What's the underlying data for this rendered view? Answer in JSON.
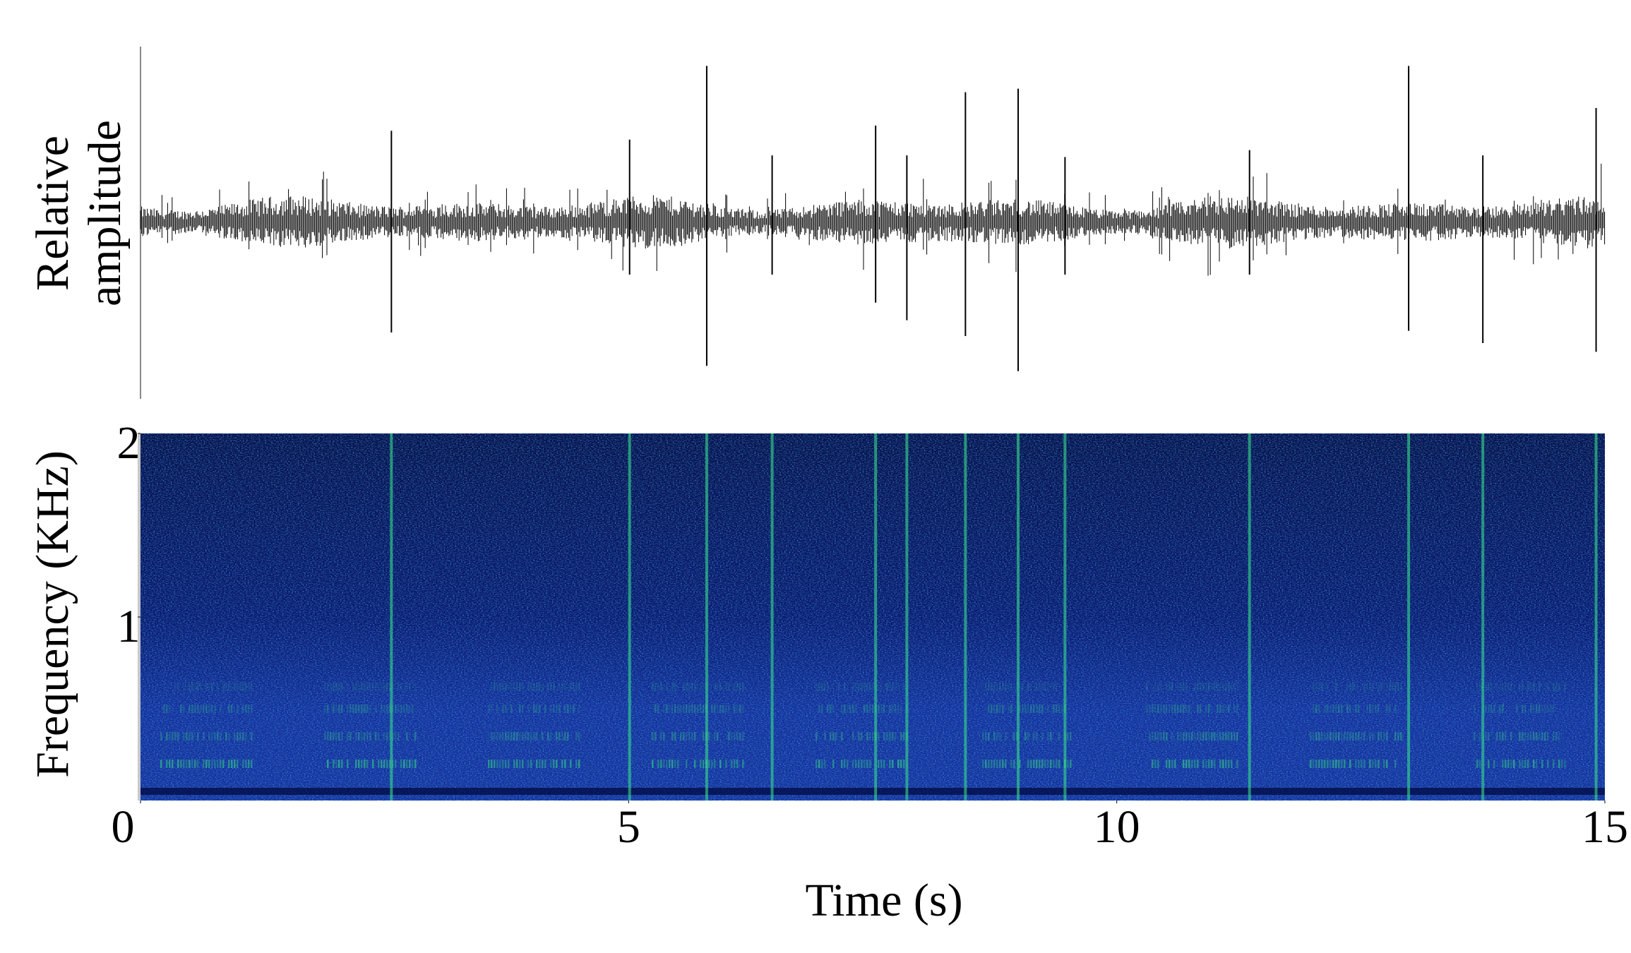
{
  "chart_data": [
    {
      "type": "waveform",
      "ylabel": [
        "Relative",
        "amplitude"
      ],
      "x": [
        2.57,
        5.01,
        5.8,
        6.47,
        7.53,
        7.85,
        8.45,
        8.99,
        9.47,
        11.36,
        12.99,
        13.75,
        14.91
      ],
      "values": [
        0.52,
        0.47,
        0.89,
        0.38,
        0.55,
        0.38,
        0.74,
        0.76,
        0.37,
        0.41,
        0.89,
        0.38,
        0.65
      ],
      "troughs": [
        -0.63,
        -0.3,
        -0.82,
        -0.3,
        -0.46,
        -0.56,
        -0.65,
        -0.85,
        -0.3,
        -0.3,
        -0.62,
        -0.69,
        -0.74
      ],
      "xlim": [
        0,
        15
      ],
      "ylim": [
        -1,
        1
      ],
      "color": "#000000"
    },
    {
      "type": "spectrogram",
      "ylabel": "Frequency (KHz)",
      "xlabel": "Time (s)",
      "xlim": [
        0,
        15
      ],
      "xticks": [
        0,
        5,
        10,
        15
      ],
      "ylim": [
        0,
        2
      ],
      "yticks": [
        1,
        2
      ],
      "color": "#0b1f8f"
    }
  ]
}
